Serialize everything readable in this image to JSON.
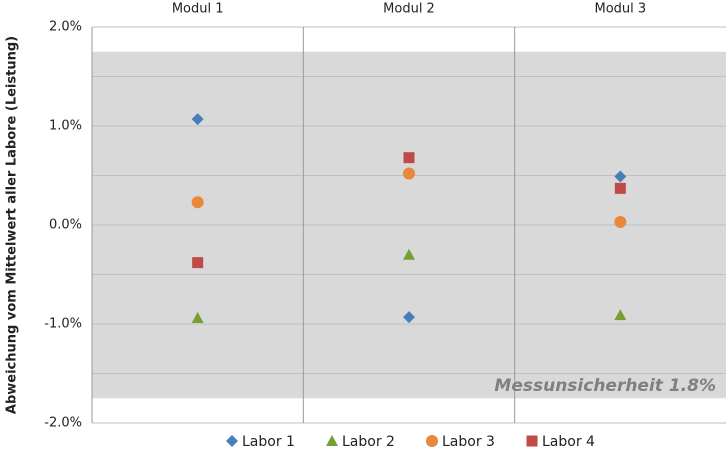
{
  "chart_data": {
    "type": "scatter",
    "ylabel": "Abweichung vom Mittelwert aller Labore (Leistung)",
    "categories": [
      "Modul 1",
      "Modul 2",
      "Modul 3"
    ],
    "series": [
      {
        "name": "Labor 1",
        "color": "#4a7ebb",
        "marker": "diamond",
        "values": [
          1.07,
          -0.93,
          0.49
        ]
      },
      {
        "name": "Labor 2",
        "color": "#77a033",
        "marker": "triangle",
        "values": [
          -0.94,
          -0.3,
          -0.91
        ]
      },
      {
        "name": "Labor 3",
        "color": "#e8883a",
        "marker": "circle",
        "values": [
          0.23,
          0.52,
          0.03
        ]
      },
      {
        "name": "Labor 4",
        "color": "#be4b48",
        "marker": "square",
        "values": [
          -0.38,
          0.68,
          0.37
        ]
      }
    ],
    "ylim": [
      -2,
      2
    ],
    "yticks": [
      {
        "value": -2,
        "label": "-2.0%"
      },
      {
        "value": -1,
        "label": "-1.0%"
      },
      {
        "value": 0,
        "label": "0.0%"
      },
      {
        "value": 1,
        "label": "1.0%"
      },
      {
        "value": 2,
        "label": "2.0%"
      }
    ],
    "minor_yticks": [
      -1.5,
      -0.5,
      0.5,
      1.5
    ],
    "band": [
      -1.75,
      1.75
    ],
    "band_color": "#d9d9d9",
    "annotation": "Messunsicherheit 1.8%",
    "grid": true,
    "legend": "bottom"
  }
}
